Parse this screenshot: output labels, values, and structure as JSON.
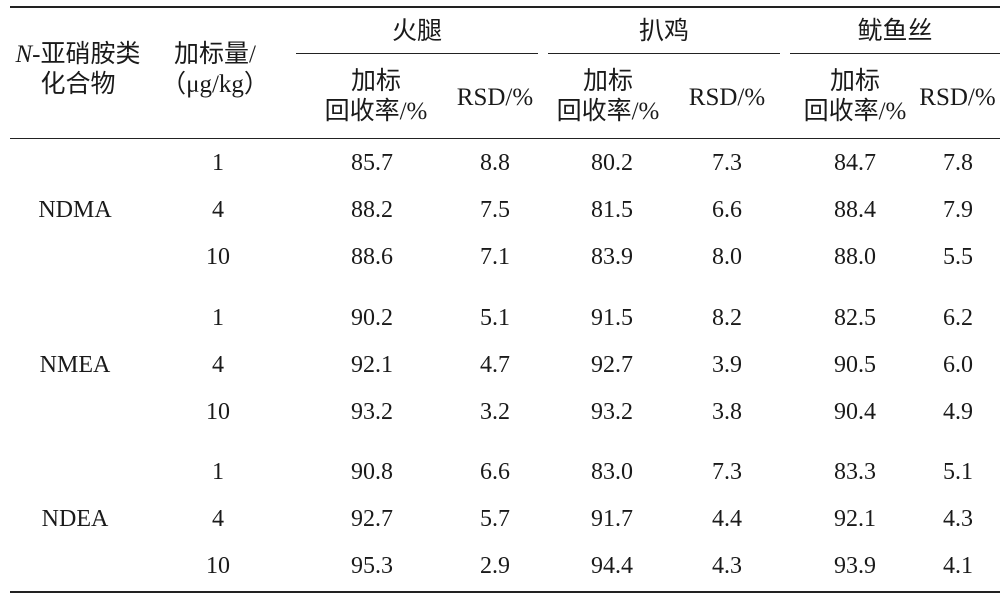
{
  "table": {
    "head": {
      "compound_prefix": "N",
      "compound_line1_rest": "-亚硝胺类",
      "compound_line2": "化合物",
      "spike_line1": "加标量/",
      "spike_line2": "（μg/kg）",
      "groups": [
        "火腿",
        "扒鸡",
        "鱿鱼丝"
      ],
      "recovery_line1": "加标",
      "recovery_line2": "回收率/%",
      "rsd": "RSD/%"
    },
    "blocks": [
      {
        "compound": "NDMA",
        "rows": [
          {
            "level": "1",
            "values": [
              "85.7",
              "8.8",
              "80.2",
              "7.3",
              "84.7",
              "7.8"
            ]
          },
          {
            "level": "4",
            "values": [
              "88.2",
              "7.5",
              "81.5",
              "6.6",
              "88.4",
              "7.9"
            ]
          },
          {
            "level": "10",
            "values": [
              "88.6",
              "7.1",
              "83.9",
              "8.0",
              "88.0",
              "5.5"
            ]
          }
        ]
      },
      {
        "compound": "NMEA",
        "rows": [
          {
            "level": "1",
            "values": [
              "90.2",
              "5.1",
              "91.5",
              "8.2",
              "82.5",
              "6.2"
            ]
          },
          {
            "level": "4",
            "values": [
              "92.1",
              "4.7",
              "92.7",
              "3.9",
              "90.5",
              "6.0"
            ]
          },
          {
            "level": "10",
            "values": [
              "93.2",
              "3.2",
              "93.2",
              "3.8",
              "90.4",
              "4.9"
            ]
          }
        ]
      },
      {
        "compound": "NDEA",
        "rows": [
          {
            "level": "1",
            "values": [
              "90.8",
              "6.6",
              "83.0",
              "7.3",
              "83.3",
              "5.1"
            ]
          },
          {
            "level": "4",
            "values": [
              "92.7",
              "5.7",
              "91.7",
              "4.4",
              "92.1",
              "4.3"
            ]
          },
          {
            "level": "10",
            "values": [
              "95.3",
              "2.9",
              "94.4",
              "4.3",
              "93.9",
              "4.1"
            ]
          }
        ]
      }
    ]
  }
}
